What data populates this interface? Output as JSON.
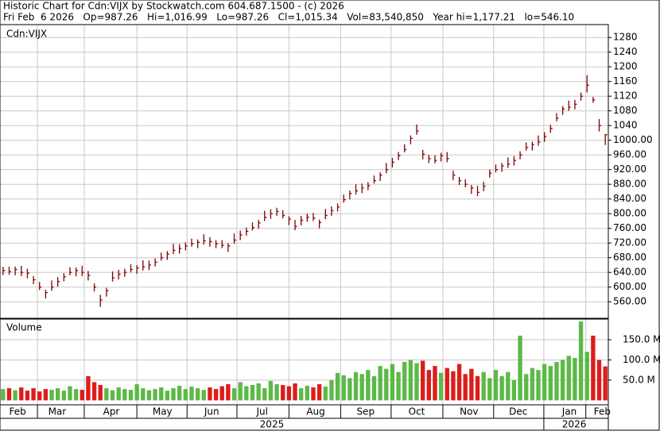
{
  "chart_data": {
    "type": "ohlc",
    "title": "Historic Chart for Cdn:VIJX by Stockwatch.com 604.687.1500 - (c) 2026",
    "subtitle": "Fri Feb  6 2026   Op=987.26   Hi=1,016.99   Lo=987.26   Cl=1,015.34   Vol=83,540,850   Year hi=1,177.21   lo=546.10",
    "panel_label": "Cdn:VIJX",
    "volume_label": "Volume",
    "bar_color": "#800000",
    "up_color": "#5cb947",
    "down_color": "#dd1c1c",
    "grid": true,
    "xlim": [
      0,
      100
    ],
    "xticks": [
      {
        "value": 2.9,
        "label": "Feb"
      },
      {
        "value": 9.4,
        "label": "Mar"
      },
      {
        "value": 18.3,
        "label": "Apr"
      },
      {
        "value": 26.7,
        "label": "May"
      },
      {
        "value": 34.8,
        "label": "Jun"
      },
      {
        "value": 43.1,
        "label": "Jul"
      },
      {
        "value": 51.9,
        "label": "Aug"
      },
      {
        "value": 60.1,
        "label": "Sep"
      },
      {
        "value": 68.5,
        "label": "Oct"
      },
      {
        "value": 77.1,
        "label": "Nov"
      },
      {
        "value": 85.2,
        "label": "Dec"
      },
      {
        "value": 93.6,
        "label": "Jan"
      },
      {
        "value": 99,
        "label": "Feb"
      }
    ],
    "year_ticks": [
      {
        "value": 44.7,
        "label": "2025"
      },
      {
        "value": 94.4,
        "label": "2026"
      }
    ],
    "ylim": [
      515,
      1315
    ],
    "yticks": [
      {
        "value": 560,
        "label": "560.00"
      },
      {
        "value": 600,
        "label": "600.00"
      },
      {
        "value": 640,
        "label": "640.00"
      },
      {
        "value": 680,
        "label": "680.00"
      },
      {
        "value": 720,
        "label": "720.00"
      },
      {
        "value": 760,
        "label": "760.00"
      },
      {
        "value": 800,
        "label": "800.00"
      },
      {
        "value": 840,
        "label": "840.00"
      },
      {
        "value": 880,
        "label": "880.00"
      },
      {
        "value": 920,
        "label": "920.00"
      },
      {
        "value": 960,
        "label": "960.00"
      },
      {
        "value": 1000,
        "label": "1000.00"
      },
      1040,
      1080,
      1120,
      1160,
      1200,
      1240,
      1280
    ],
    "y2lim": [
      -11,
      201
    ],
    "y2ticks": [
      {
        "value": 50,
        "label": "50.0 M"
      },
      {
        "value": 100,
        "label": "100.0 M"
      },
      {
        "value": 150,
        "label": "150.0 M"
      }
    ],
    "high": [
      655,
      656,
      656,
      658,
      650,
      630,
      614,
      593,
      618,
      627,
      638,
      654,
      653,
      658,
      644,
      610,
      579,
      598,
      643,
      647,
      650,
      662,
      660,
      673,
      672,
      678,
      694,
      698,
      718,
      717,
      722,
      732,
      730,
      744,
      736,
      728,
      728,
      720,
      746,
      754,
      762,
      776,
      783,
      808,
      812,
      816,
      809,
      793,
      783,
      794,
      800,
      802,
      784,
      813,
      820,
      828,
      852,
      863,
      880,
      882,
      886,
      904,
      913,
      938,
      952,
      968,
      989,
      1013,
      1043,
      974,
      960,
      959,
      966,
      968,
      917,
      900,
      894,
      878,
      876,
      887,
      920,
      934,
      938,
      953,
      957,
      970,
      994,
      996,
      1013,
      1022,
      1042,
      1074,
      1093,
      1108,
      1110,
      1130,
      1177,
      1118,
      1058,
      1017
    ],
    "low": [
      633,
      634,
      632,
      630,
      624,
      608,
      592,
      569,
      590,
      601,
      616,
      632,
      629,
      630,
      618,
      588,
      546,
      574,
      615,
      621,
      628,
      640,
      636,
      645,
      646,
      656,
      672,
      674,
      690,
      691,
      700,
      710,
      706,
      716,
      710,
      706,
      706,
      696,
      718,
      728,
      740,
      754,
      759,
      780,
      786,
      794,
      787,
      769,
      755,
      768,
      778,
      780,
      760,
      785,
      794,
      806,
      830,
      839,
      852,
      856,
      864,
      882,
      889,
      910,
      926,
      946,
      967,
      989,
      1015,
      948,
      938,
      937,
      942,
      940,
      891,
      878,
      872,
      854,
      848,
      861,
      898,
      912,
      914,
      925,
      931,
      948,
      972,
      972,
      985,
      996,
      1020,
      1052,
      1069,
      1080,
      1084,
      1108,
      1130,
      1102,
      1024,
      987
    ],
    "close": [
      645,
      642,
      648,
      640,
      638,
      620,
      600,
      585,
      600,
      615,
      628,
      640,
      645,
      640,
      632,
      600,
      565,
      590,
      625,
      635,
      640,
      648,
      652,
      655,
      660,
      668,
      680,
      690,
      700,
      705,
      712,
      718,
      722,
      726,
      724,
      718,
      714,
      712,
      728,
      742,
      752,
      762,
      775,
      790,
      800,
      806,
      795,
      785,
      765,
      782,
      790,
      788,
      776,
      795,
      808,
      818,
      838,
      855,
      862,
      870,
      876,
      890,
      905,
      920,
      940,
      958,
      975,
      1005,
      1025,
      962,
      950,
      945,
      958,
      950,
      905,
      890,
      880,
      870,
      858,
      875,
      910,
      920,
      930,
      935,
      945,
      960,
      980,
      988,
      995,
      1010,
      1032,
      1060,
      1085,
      1090,
      1098,
      1120,
      1150,
      1110,
      1040,
      1015
    ],
    "volume": [
      28,
      30,
      25,
      32,
      24,
      30,
      22,
      28,
      26,
      30,
      24,
      35,
      28,
      26,
      60,
      45,
      38,
      30,
      25,
      32,
      28,
      26,
      40,
      30,
      25,
      28,
      32,
      24,
      30,
      36,
      28,
      34,
      30,
      26,
      32,
      28,
      35,
      40,
      30,
      45,
      35,
      38,
      42,
      30,
      48,
      40,
      38,
      35,
      42,
      30,
      36,
      32,
      40,
      34,
      50,
      68,
      62,
      55,
      70,
      65,
      75,
      60,
      85,
      78,
      90,
      70,
      95,
      100,
      92,
      98,
      75,
      85,
      68,
      80,
      72,
      90,
      65,
      78,
      60,
      70,
      55,
      75,
      60,
      70,
      50,
      160,
      65,
      80,
      75,
      90,
      85,
      95,
      100,
      110,
      105,
      195,
      120,
      160,
      100,
      84
    ]
  }
}
